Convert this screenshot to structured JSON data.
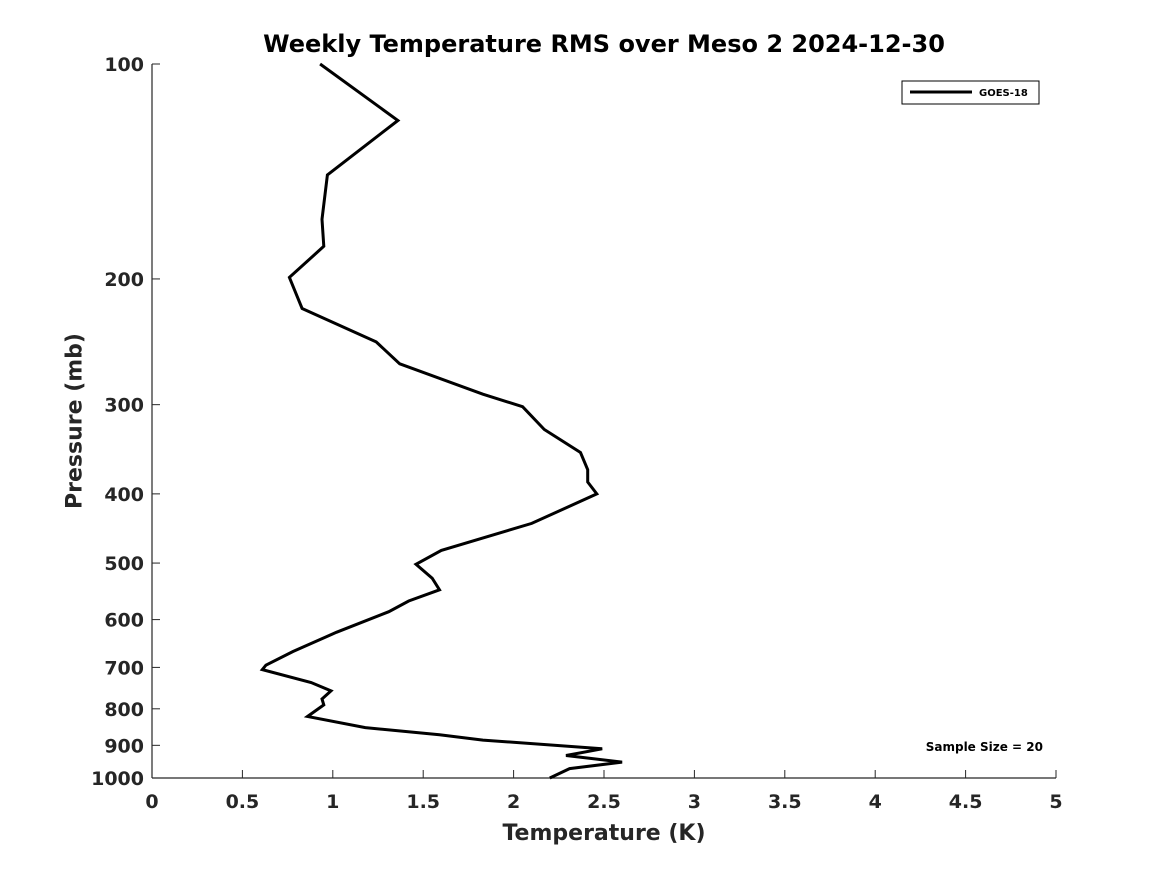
{
  "chart_data": {
    "type": "line",
    "title": "Weekly Temperature RMS over Meso 2 2024-12-30",
    "xlabel": "Temperature (K)",
    "ylabel": "Pressure (mb)",
    "xlim": [
      0,
      5
    ],
    "ylim": [
      100,
      1000
    ],
    "y_scale": "log",
    "y_reversed": true,
    "x_ticks": [
      0,
      0.5,
      1,
      1.5,
      2,
      2.5,
      3,
      3.5,
      4,
      4.5,
      5
    ],
    "x_tick_labels": [
      "0",
      "0.5",
      "1",
      "1.5",
      "2",
      "2.5",
      "3",
      "3.5",
      "4",
      "4.5",
      "5"
    ],
    "y_ticks": [
      100,
      200,
      300,
      400,
      500,
      600,
      700,
      800,
      900,
      1000
    ],
    "y_tick_labels": [
      "100",
      "200",
      "300",
      "400",
      "500",
      "600",
      "700",
      "800",
      "900",
      "1000"
    ],
    "grid": false,
    "legend_position": "top-right",
    "series": [
      {
        "name": "GOES-18",
        "color": "#000000",
        "x": [
          0.93,
          1.36,
          0.97,
          0.94,
          0.95,
          0.76,
          0.83,
          1.24,
          1.37,
          1.83,
          2.05,
          2.17,
          2.37,
          2.41,
          2.41,
          2.46,
          2.1,
          1.6,
          1.46,
          1.55,
          1.59,
          1.42,
          1.31,
          1.02,
          0.78,
          0.63,
          0.61,
          0.88,
          0.99,
          0.94,
          0.95,
          0.86,
          1.18,
          1.59,
          1.83,
          2.49,
          2.29,
          2.6,
          2.31,
          2.2
        ],
        "y": [
          100,
          120,
          143,
          165,
          180,
          199,
          220,
          245,
          263,
          290,
          302,
          325,
          350,
          370,
          385,
          400,
          440,
          480,
          502,
          525,
          545,
          565,
          585,
          625,
          665,
          695,
          705,
          735,
          755,
          775,
          790,
          820,
          850,
          870,
          885,
          910,
          930,
          950,
          970,
          1000
        ]
      }
    ],
    "annotations": [
      {
        "text": "Sample Size = 20"
      }
    ]
  }
}
